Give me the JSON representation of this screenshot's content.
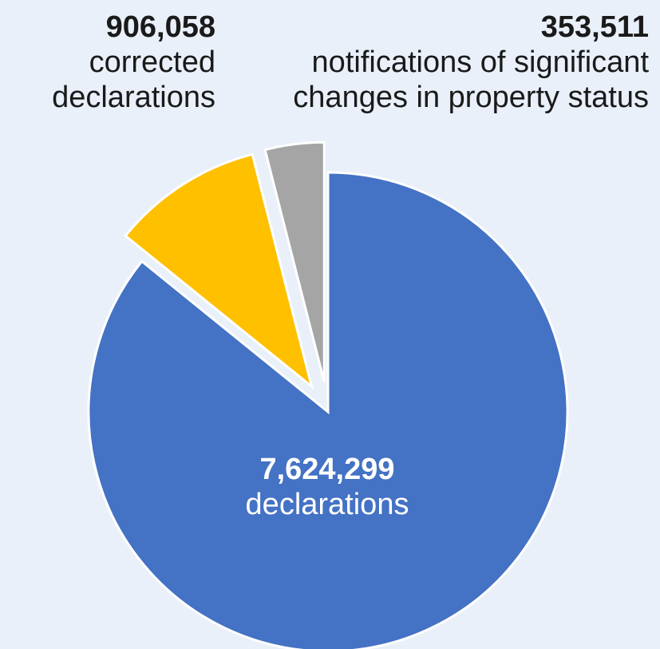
{
  "chart_data": {
    "type": "pie",
    "slices": [
      {
        "value": 7624299,
        "value_label": "7,624,299",
        "label": "declarations",
        "color": "#4472c4"
      },
      {
        "value": 906058,
        "value_label": "906,058",
        "label": "corrected declarations",
        "color": "#ffc000"
      },
      {
        "value": 353511,
        "value_label": "353,511",
        "label": "notifications of significant changes in property status",
        "color": "#a5a5a5"
      }
    ],
    "start_angle": "12 o'clock",
    "direction": "clockwise",
    "exploded": true,
    "legend": "none"
  }
}
